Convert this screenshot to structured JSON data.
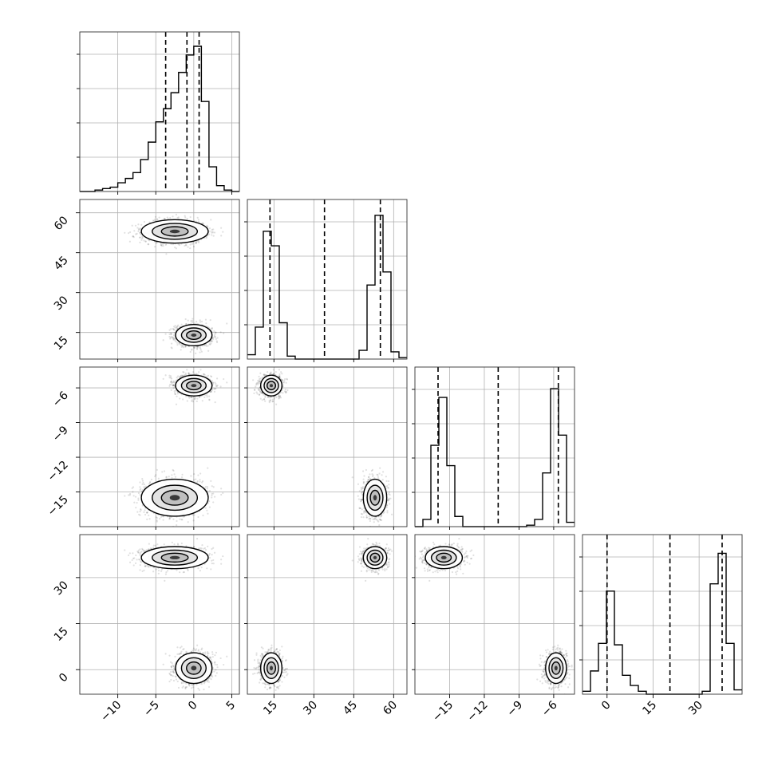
{
  "chart_data": {
    "type": "corner",
    "parameters": [
      {
        "range": [
          -15,
          6
        ],
        "ticks": [
          -10,
          -5,
          0,
          5
        ],
        "tick_labels": [
          "−10",
          "−5",
          "0",
          "5"
        ],
        "quantiles": [
          -3.7,
          -0.9,
          0.7
        ]
      },
      {
        "range": [
          5,
          65
        ],
        "ticks": [
          15,
          30,
          45,
          60
        ],
        "tick_labels": [
          "15",
          "30",
          "45",
          "60"
        ],
        "quantiles": [
          13.5,
          34,
          55
        ]
      },
      {
        "range": [
          -18,
          -4.2
        ],
        "ticks": [
          -15,
          -12,
          -9,
          -6
        ],
        "tick_labels": [
          "−15",
          "−12",
          "−9",
          "−6"
        ],
        "quantiles": [
          -16,
          -10.8,
          -5.6
        ]
      },
      {
        "range": [
          -8,
          44
        ],
        "ticks": [
          0,
          15,
          30
        ],
        "tick_labels": [
          "0",
          "15",
          "30"
        ],
        "quantiles": [
          0,
          20.5,
          37.5
        ]
      }
    ],
    "y_tick_labels": {
      "1": [
        "15",
        "30",
        "45",
        "60"
      ],
      "2": [
        "−15",
        "−12",
        "−9",
        "−6"
      ],
      "3": [
        "0",
        "15",
        "30"
      ]
    },
    "histograms": [
      {
        "edges": [
          -15,
          -14,
          -13,
          -12,
          -11,
          -10,
          -9,
          -8,
          -7,
          -6,
          -5,
          -4,
          -3,
          -2,
          -1,
          0,
          1,
          2,
          3,
          4,
          5,
          6
        ],
        "counts": [
          0,
          0,
          0.01,
          0.02,
          0.03,
          0.06,
          0.09,
          0.13,
          0.22,
          0.34,
          0.48,
          0.57,
          0.68,
          0.82,
          0.94,
          1.0,
          0.62,
          0.17,
          0.04,
          0.01,
          0
        ]
      },
      {
        "edges": [
          5,
          8,
          11,
          14,
          17,
          20,
          23,
          26,
          29,
          32,
          35,
          38,
          41,
          44,
          47,
          50,
          53,
          56,
          59,
          62,
          65
        ],
        "counts": [
          0.03,
          0.22,
          0.88,
          0.78,
          0.25,
          0.02,
          0,
          0,
          0,
          0,
          0,
          0,
          0,
          0,
          0.06,
          0.51,
          0.99,
          0.6,
          0.05,
          0.01
        ]
      },
      {
        "edges": [
          -18,
          -17.31,
          -16.62,
          -15.93,
          -15.24,
          -14.55,
          -13.86,
          -13.17,
          -12.48,
          -11.79,
          -11.1,
          -10.41,
          -9.72,
          -9.03,
          -8.34,
          -7.65,
          -6.96,
          -6.27,
          -5.58,
          -4.89,
          -4.2
        ],
        "counts": [
          0,
          0.05,
          0.56,
          0.89,
          0.42,
          0.07,
          0,
          0,
          0,
          0,
          0,
          0,
          0,
          0,
          0.01,
          0.05,
          0.37,
          0.95,
          0.63,
          0.03
        ]
      },
      {
        "edges": [
          -8,
          -5.4,
          -2.8,
          -0.2,
          2.4,
          5,
          7.6,
          10.2,
          12.8,
          15.4,
          18,
          20.6,
          23.2,
          25.8,
          28.4,
          31,
          33.6,
          36.2,
          38.8,
          41.4,
          44
        ],
        "counts": [
          0.02,
          0.16,
          0.35,
          0.71,
          0.34,
          0.13,
          0.06,
          0.02,
          0,
          0,
          0,
          0,
          0,
          0,
          0,
          0.02,
          0.76,
          0.97,
          0.35,
          0.03
        ]
      }
    ],
    "clusters": [
      {
        "center": [
          -2.5,
          53,
          -15.5,
          36.5
        ],
        "spread": [
          2.2,
          2.2,
          0.8,
          1.8
        ],
        "weight": 0.5
      },
      {
        "center": [
          0,
          14,
          -5.8,
          0.5
        ],
        "spread": [
          1.2,
          2.0,
          0.45,
          2.5
        ],
        "weight": 0.5
      }
    ],
    "grid": true
  }
}
